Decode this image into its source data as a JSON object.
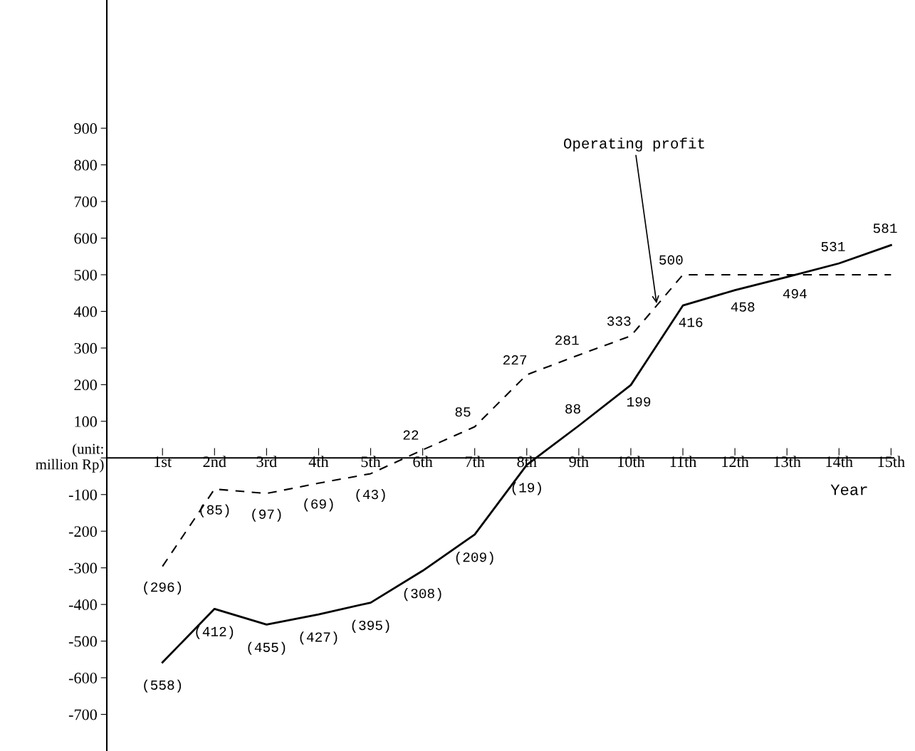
{
  "chart_data": {
    "type": "line",
    "xlabel": "Year",
    "ylabel": "(unit:\nmillion Rp)",
    "categories": [
      "1st",
      "2nd",
      "3rd",
      "4th",
      "5th",
      "6th",
      "7th",
      "8th",
      "9th",
      "10th",
      "11th",
      "12th",
      "13th",
      "14th",
      "15th"
    ],
    "ylim": [
      -800,
      1250
    ],
    "yticks": [
      -700,
      -600,
      -500,
      -400,
      -300,
      -200,
      -100,
      {
        "value": 0,
        "label": null
      },
      100,
      200,
      300,
      400,
      500,
      600,
      700,
      800,
      900
    ],
    "grid": false,
    "legend": false,
    "marker": "none",
    "series": [
      {
        "name": "Operating profit",
        "color": "#000000",
        "line_style": "dashed",
        "values": [
          -296,
          -85,
          -97,
          -69,
          -43,
          22,
          85,
          227,
          281,
          333,
          500,
          500,
          500,
          500,
          500
        ],
        "value_labels": [
          "(296)",
          "(85)",
          "(97)",
          "(69)",
          "(43)",
          "22",
          "85",
          "227",
          "281",
          "333",
          "500",
          null,
          null,
          null,
          null
        ]
      },
      {
        "color": "#000000",
        "line_style": "solid",
        "values": [
          -558,
          -412,
          -455,
          -427,
          -395,
          -308,
          -209,
          -19,
          88,
          199,
          416,
          458,
          494,
          531,
          581
        ],
        "value_labels": [
          "(558)",
          "(412)",
          "(455)",
          "(427)",
          "(395)",
          "(308)",
          "(209)",
          "(19)",
          "88",
          "199",
          "416",
          "458",
          "494",
          "531",
          "581"
        ]
      }
    ]
  }
}
